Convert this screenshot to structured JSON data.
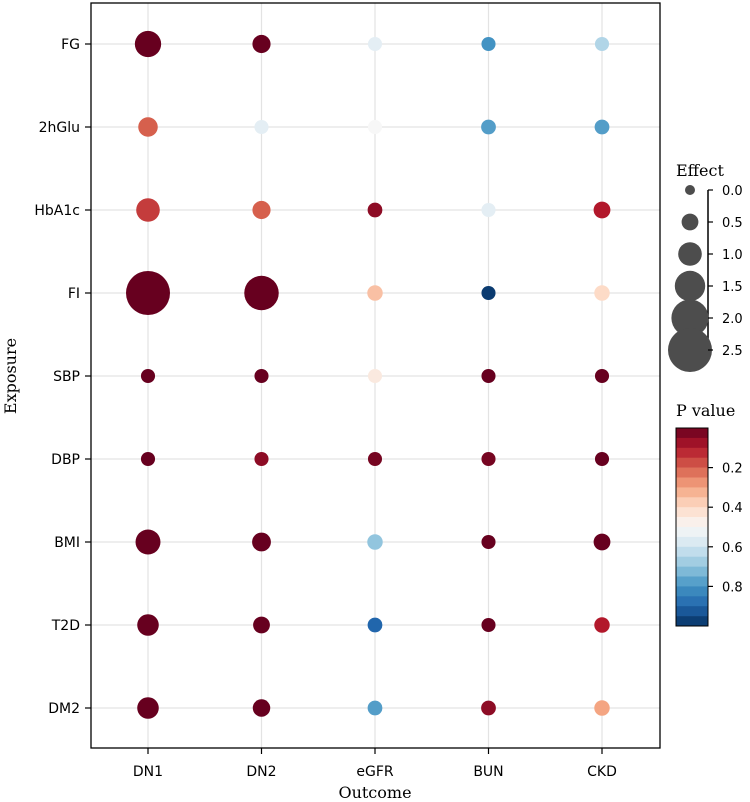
{
  "chart_data": {
    "type": "scatter",
    "subtype": "bubble-matrix",
    "xlabel": "Outcome",
    "ylabel": "Exposure",
    "x_categories": [
      "DN1",
      "DN2",
      "eGFR",
      "BUN",
      "CKD"
    ],
    "y_categories": [
      "FG",
      "2hGlu",
      "HbA1c",
      "FI",
      "SBP",
      "DBP",
      "BMI",
      "T2D",
      "DM2"
    ],
    "grid": true,
    "size_legend": {
      "title": "Effect",
      "ticks": [
        0.0,
        0.5,
        1.0,
        1.5,
        2.0,
        2.5
      ],
      "tick_labels": [
        "0.0",
        "0.5",
        "1.0",
        "1.5",
        "2.0",
        "2.5"
      ]
    },
    "color_legend": {
      "title": "P value",
      "colormap": "RdBu",
      "range": [
        0.0,
        1.0
      ],
      "ticks": [
        0.2,
        0.4,
        0.6,
        0.8
      ],
      "tick_labels": [
        "0.2",
        "0.4",
        "0.6",
        "0.8"
      ]
    },
    "points": [
      {
        "exposure": "FG",
        "outcome": "DN1",
        "effect": 1.2,
        "p": 0.0
      },
      {
        "exposure": "FG",
        "outcome": "DN2",
        "effect": 0.6,
        "p": 0.0
      },
      {
        "exposure": "FG",
        "outcome": "eGFR",
        "effect": 0.3,
        "p": 0.55
      },
      {
        "exposure": "FG",
        "outcome": "BUN",
        "effect": 0.3,
        "p": 0.8
      },
      {
        "exposure": "FG",
        "outcome": "CKD",
        "effect": 0.3,
        "p": 0.65
      },
      {
        "exposure": "2hGlu",
        "outcome": "DN1",
        "effect": 0.7,
        "p": 0.2
      },
      {
        "exposure": "2hGlu",
        "outcome": "DN2",
        "effect": 0.3,
        "p": 0.55
      },
      {
        "exposure": "2hGlu",
        "outcome": "eGFR",
        "effect": 0.3,
        "p": 0.5
      },
      {
        "exposure": "2hGlu",
        "outcome": "BUN",
        "effect": 0.35,
        "p": 0.78
      },
      {
        "exposure": "2hGlu",
        "outcome": "CKD",
        "effect": 0.35,
        "p": 0.78
      },
      {
        "exposure": "HbA1c",
        "outcome": "DN1",
        "effect": 1.0,
        "p": 0.15
      },
      {
        "exposure": "HbA1c",
        "outcome": "DN2",
        "effect": 0.6,
        "p": 0.2
      },
      {
        "exposure": "HbA1c",
        "outcome": "eGFR",
        "effect": 0.35,
        "p": 0.05
      },
      {
        "exposure": "HbA1c",
        "outcome": "BUN",
        "effect": 0.3,
        "p": 0.55
      },
      {
        "exposure": "HbA1c",
        "outcome": "CKD",
        "effect": 0.5,
        "p": 0.1
      },
      {
        "exposure": "FI",
        "outcome": "DN1",
        "effect": 2.5,
        "p": 0.0
      },
      {
        "exposure": "FI",
        "outcome": "DN2",
        "effect": 1.8,
        "p": 0.0
      },
      {
        "exposure": "FI",
        "outcome": "eGFR",
        "effect": 0.4,
        "p": 0.35
      },
      {
        "exposure": "FI",
        "outcome": "BUN",
        "effect": 0.3,
        "p": 0.98
      },
      {
        "exposure": "FI",
        "outcome": "CKD",
        "effect": 0.4,
        "p": 0.4
      },
      {
        "exposure": "SBP",
        "outcome": "DN1",
        "effect": 0.3,
        "p": 0.0
      },
      {
        "exposure": "SBP",
        "outcome": "DN2",
        "effect": 0.3,
        "p": 0.0
      },
      {
        "exposure": "SBP",
        "outcome": "eGFR",
        "effect": 0.3,
        "p": 0.45
      },
      {
        "exposure": "SBP",
        "outcome": "BUN",
        "effect": 0.3,
        "p": 0.0
      },
      {
        "exposure": "SBP",
        "outcome": "CKD",
        "effect": 0.3,
        "p": 0.0
      },
      {
        "exposure": "DBP",
        "outcome": "DN1",
        "effect": 0.3,
        "p": 0.0
      },
      {
        "exposure": "DBP",
        "outcome": "DN2",
        "effect": 0.3,
        "p": 0.05
      },
      {
        "exposure": "DBP",
        "outcome": "eGFR",
        "effect": 0.3,
        "p": 0.02
      },
      {
        "exposure": "DBP",
        "outcome": "BUN",
        "effect": 0.3,
        "p": 0.02
      },
      {
        "exposure": "DBP",
        "outcome": "CKD",
        "effect": 0.3,
        "p": 0.0
      },
      {
        "exposure": "BMI",
        "outcome": "DN1",
        "effect": 1.1,
        "p": 0.0
      },
      {
        "exposure": "BMI",
        "outcome": "DN2",
        "effect": 0.65,
        "p": 0.0
      },
      {
        "exposure": "BMI",
        "outcome": "eGFR",
        "effect": 0.4,
        "p": 0.7
      },
      {
        "exposure": "BMI",
        "outcome": "BUN",
        "effect": 0.3,
        "p": 0.0
      },
      {
        "exposure": "BMI",
        "outcome": "CKD",
        "effect": 0.5,
        "p": 0.0
      },
      {
        "exposure": "T2D",
        "outcome": "DN1",
        "effect": 0.85,
        "p": 0.0
      },
      {
        "exposure": "T2D",
        "outcome": "DN2",
        "effect": 0.5,
        "p": 0.0
      },
      {
        "exposure": "T2D",
        "outcome": "eGFR",
        "effect": 0.35,
        "p": 0.9
      },
      {
        "exposure": "T2D",
        "outcome": "BUN",
        "effect": 0.3,
        "p": 0.0
      },
      {
        "exposure": "T2D",
        "outcome": "CKD",
        "effect": 0.4,
        "p": 0.1
      },
      {
        "exposure": "DM2",
        "outcome": "DN1",
        "effect": 0.85,
        "p": 0.0
      },
      {
        "exposure": "DM2",
        "outcome": "DN2",
        "effect": 0.55,
        "p": 0.0
      },
      {
        "exposure": "DM2",
        "outcome": "eGFR",
        "effect": 0.35,
        "p": 0.78
      },
      {
        "exposure": "DM2",
        "outcome": "BUN",
        "effect": 0.35,
        "p": 0.05
      },
      {
        "exposure": "DM2",
        "outcome": "CKD",
        "effect": 0.4,
        "p": 0.3
      }
    ]
  }
}
